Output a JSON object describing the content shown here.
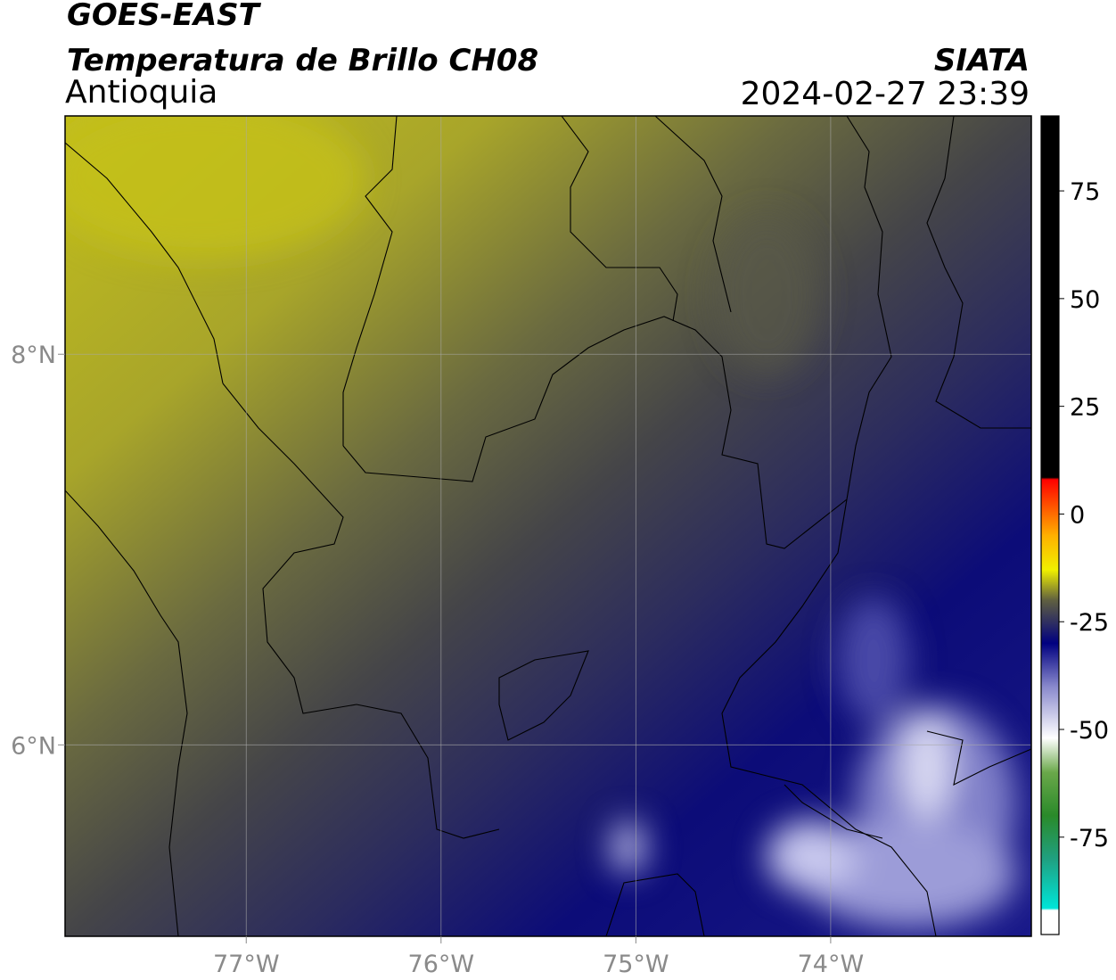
{
  "header": {
    "title": "GOES-EAST",
    "subtitle": "Temperatura de Brillo CH08",
    "region": "Antioquia",
    "source": "SIATA",
    "datetime": "2024-02-27 23:39"
  },
  "map": {
    "xlim": [
      -77.93,
      -72.97
    ],
    "ylim": [
      5.02,
      9.22
    ],
    "xticks": [
      {
        "value": -77,
        "label": "77°W"
      },
      {
        "value": -76,
        "label": "76°W"
      },
      {
        "value": -75,
        "label": "75°W"
      },
      {
        "value": -74,
        "label": "74°W"
      }
    ],
    "yticks": [
      {
        "value": 8,
        "label": "8°N"
      },
      {
        "value": 6,
        "label": "6°N"
      }
    ],
    "grid": true
  },
  "colorbar": {
    "lim": [
      -97.6,
      92.4
    ],
    "ticks": [
      75,
      50,
      25,
      0,
      -25,
      -50,
      -75
    ],
    "colormap": [
      {
        "value": -97.6,
        "color": "#ffffff"
      },
      {
        "value": -92,
        "color": "#ffffff"
      },
      {
        "value": -91.5,
        "color": "#00e5d8"
      },
      {
        "value": -80,
        "color": "#20a080"
      },
      {
        "value": -70,
        "color": "#2a8a2a"
      },
      {
        "value": -60,
        "color": "#6aa84a"
      },
      {
        "value": -52,
        "color": "#ffffff"
      },
      {
        "value": -40,
        "color": "#8888cc"
      },
      {
        "value": -30,
        "color": "#000080"
      },
      {
        "value": -25,
        "color": "#303060"
      },
      {
        "value": -20,
        "color": "#606040"
      },
      {
        "value": -13,
        "color": "#f0f000"
      },
      {
        "value": -5,
        "color": "#ffb000"
      },
      {
        "value": 8,
        "color": "#ff0000"
      },
      {
        "value": 8.5,
        "color": "#000000"
      },
      {
        "value": 92.4,
        "color": "#000000"
      }
    ]
  }
}
